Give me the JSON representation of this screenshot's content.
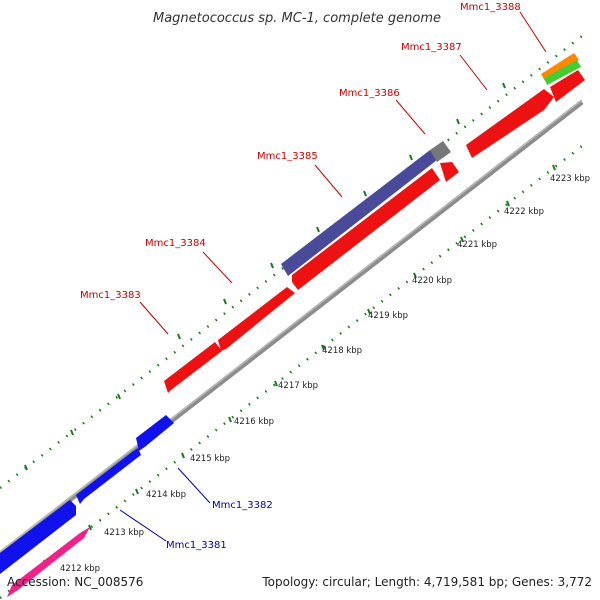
{
  "title": "Magnetococcus sp. MC-1, complete genome",
  "footer": {
    "accession": "Accession: NC_008576",
    "info": "Topology: circular; Length: 4,719,581 bp; Genes: 3,772"
  },
  "ticks": [
    "4212 kbp",
    "4213 kbp",
    "4214 kbp",
    "4215 kbp",
    "4216 kbp",
    "4217 kbp",
    "4218 kbp",
    "4219 kbp",
    "4220 kbp",
    "4221 kbp",
    "4222 kbp",
    "4223 kbp"
  ],
  "gene_labels": {
    "mmc1_3381": "Mmc1_3381",
    "mmc1_3382": "Mmc1_3382",
    "mmc1_3383": "Mmc1_3383",
    "mmc1_3384": "Mmc1_3384",
    "mmc1_3385": "Mmc1_3385",
    "mmc1_3386": "Mmc1_3386",
    "mmc1_3387": "Mmc1_3387",
    "mmc1_3388": "Mmc1_3388"
  },
  "colors": {
    "background": "#ffffff",
    "backbone": "#8c8c8c",
    "tick": "#1a7a1a",
    "label_red": "#cc0000",
    "label_blue": "#0000aa",
    "gene_red": "#ee1111",
    "gene_blue": "#1111ee",
    "gene_pink": "#ee2288",
    "gene_purple": "#4a4a9a",
    "gene_gray": "#777777",
    "gene_orange": "#ff8800",
    "gene_green": "#44cc33"
  }
}
